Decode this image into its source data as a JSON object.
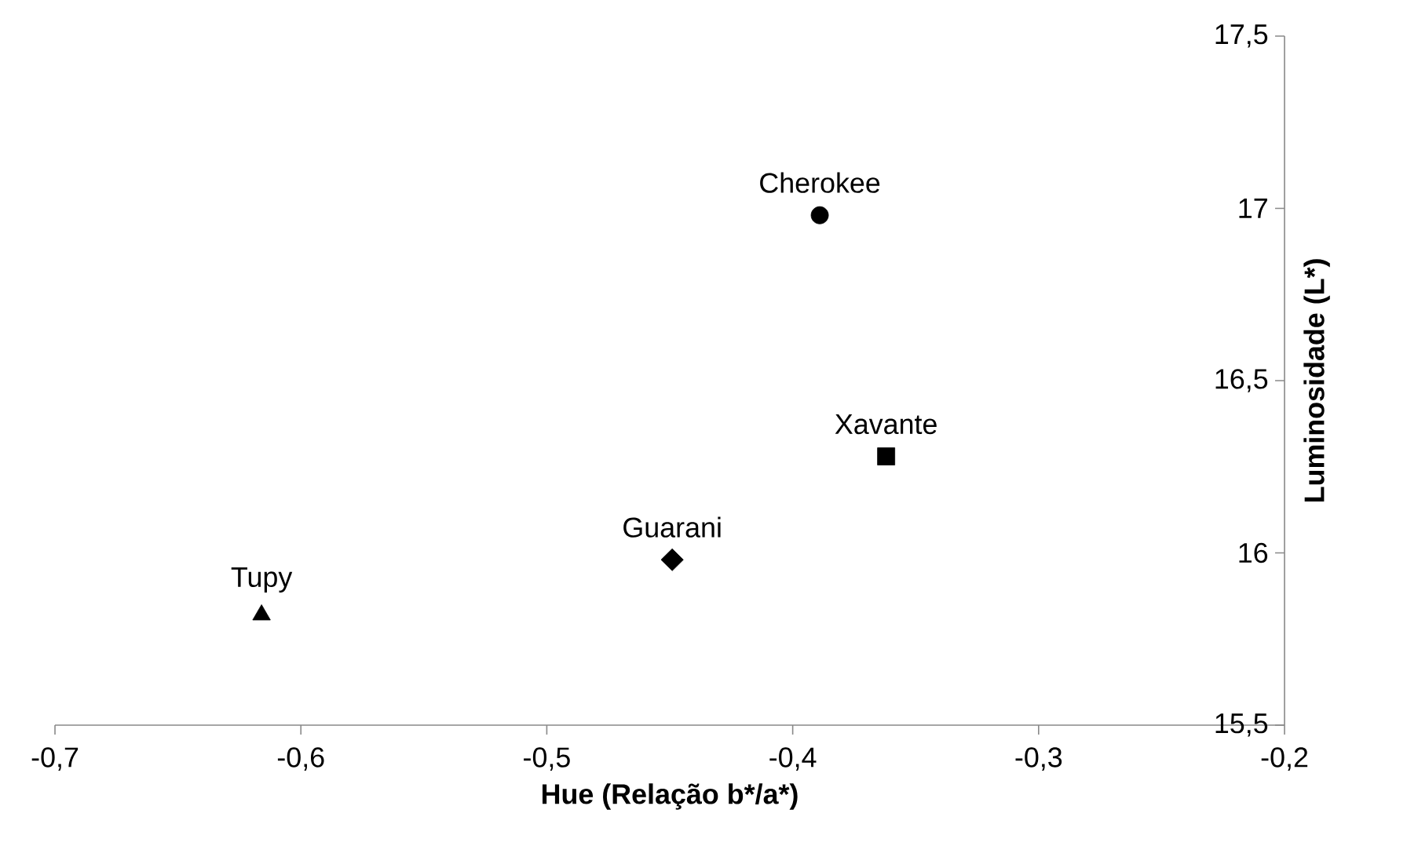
{
  "chart_data": {
    "type": "scatter",
    "xlabel": "Hue (Relação b*/a*)",
    "ylabel": "Luminosidade (L*)",
    "xlim": [
      -0.7,
      -0.2
    ],
    "ylim": [
      15.5,
      17.5
    ],
    "xticks": [
      {
        "value": -0.7,
        "label": "-0,7"
      },
      {
        "value": -0.6,
        "label": "-0,6"
      },
      {
        "value": -0.5,
        "label": "-0,5"
      },
      {
        "value": -0.4,
        "label": "-0,4"
      },
      {
        "value": -0.3,
        "label": "-0,3"
      },
      {
        "value": -0.2,
        "label": "-0,2"
      }
    ],
    "yticks": [
      {
        "value": 15.5,
        "label": "15,5"
      },
      16,
      {
        "value": 16.5,
        "label": "16,5"
      },
      17,
      {
        "value": 17.5,
        "label": "17,5"
      }
    ],
    "series": [
      {
        "name": "Tupy",
        "color": "#000000",
        "marker": "triangle",
        "x": [
          -0.616
        ],
        "values": [
          15.82
        ]
      },
      {
        "name": "Guarani",
        "color": "#000000",
        "marker": "diamond",
        "x": [
          -0.449
        ],
        "values": [
          15.98
        ]
      },
      {
        "name": "Cherokee",
        "color": "#000000",
        "marker": "circle",
        "x": [
          -0.389
        ],
        "values": [
          16.98
        ]
      },
      {
        "name": "Xavante",
        "color": "#000000",
        "marker": "square",
        "x": [
          -0.362
        ],
        "values": [
          16.28
        ]
      }
    ]
  }
}
